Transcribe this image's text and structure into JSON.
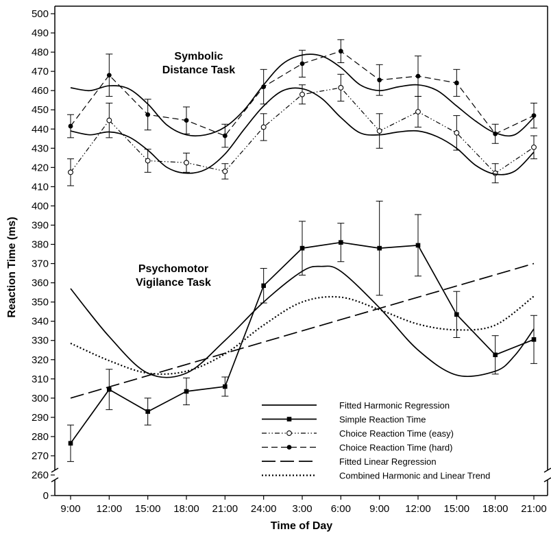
{
  "chart_data": {
    "type": "line",
    "xlabel": "Time of Day",
    "ylabel": "Reaction Time (ms)",
    "categories": [
      "9:00",
      "12:00",
      "15:00",
      "18:00",
      "21:00",
      "24:00",
      "3:00",
      "6:00",
      "9:00",
      "12:00",
      "15:00",
      "18:00",
      "21:00"
    ],
    "y_ticks": [
      0,
      260,
      270,
      280,
      290,
      300,
      310,
      320,
      330,
      340,
      350,
      360,
      370,
      380,
      390,
      400,
      410,
      420,
      430,
      440,
      450,
      460,
      470,
      480,
      490,
      500
    ],
    "ylim": [
      260,
      500
    ],
    "axis_break": {
      "below": 260,
      "zero_label": 0
    },
    "grid": false,
    "legend_position": "bottom-right",
    "annotations": [
      {
        "lines": [
          "Symbolic",
          "Distance Task"
        ]
      },
      {
        "lines": [
          "Psychomotor",
          "Vigilance Task"
        ]
      }
    ],
    "series": [
      {
        "name": "Simple Reaction Time",
        "style": "solid-square",
        "values": [
          276.5,
          304.5,
          293,
          303.5,
          306,
          358.5,
          378,
          381,
          378,
          379.5,
          343.5,
          322.5,
          330.5
        ],
        "errors": [
          9.5,
          10.5,
          7,
          7,
          5,
          9,
          14,
          10,
          24.5,
          16,
          12,
          10,
          12.5
        ]
      },
      {
        "name": "Choice Reaction Time (easy)",
        "style": "dashdotdot-open-circle",
        "values": [
          417.5,
          444.5,
          423.5,
          422.5,
          418,
          441,
          458,
          461.5,
          439,
          449,
          438,
          417,
          430.5
        ],
        "errors": [
          7,
          9,
          6,
          5,
          4,
          7,
          5,
          7,
          9,
          8,
          9,
          5,
          6
        ]
      },
      {
        "name": "Choice Reaction Time (hard)",
        "style": "dashed-filled-circle",
        "values": [
          441.5,
          468,
          447.5,
          444.5,
          436.5,
          462,
          474,
          480.5,
          465.5,
          467.5,
          464,
          437.5,
          447
        ],
        "errors": [
          6,
          11,
          8,
          7,
          6,
          9,
          7,
          6,
          8,
          10.5,
          7,
          5,
          6.5
        ]
      },
      {
        "name": "Fitted Harmonic Regression",
        "style": "solid",
        "smooth": true,
        "x": [
          0,
          1,
          2,
          3,
          4,
          5,
          6,
          6.5,
          7,
          8,
          9,
          10,
          11,
          11.5,
          12
        ],
        "values": [
          357,
          332,
          313,
          313,
          330,
          350,
          366,
          368.5,
          366,
          347,
          325,
          312,
          314,
          322,
          336
        ]
      },
      {
        "name": "",
        "style": "solid",
        "smooth": true,
        "x": [
          0,
          0.5,
          1,
          1.5,
          2,
          2.5,
          3,
          3.5,
          4,
          4.5,
          5,
          5.5,
          6,
          6.5,
          7,
          7.5,
          8,
          8.5,
          9,
          9.5,
          10,
          10.5,
          11,
          11.5,
          12
        ],
        "values": [
          461.5,
          460,
          462.5,
          461,
          453,
          442,
          437,
          437,
          441,
          450,
          463,
          474,
          478.5,
          478,
          472,
          463,
          460,
          462,
          463,
          460,
          452,
          444,
          438,
          437,
          446
        ]
      },
      {
        "name": "",
        "style": "solid",
        "smooth": true,
        "x": [
          0,
          0.5,
          1,
          1.5,
          2,
          2.5,
          3,
          3.5,
          4,
          4.5,
          5,
          5.5,
          6,
          6.5,
          7,
          7.5,
          8,
          8.5,
          9,
          9.5,
          10,
          10.5,
          11,
          11.5,
          12
        ],
        "values": [
          439,
          437,
          438.5,
          436,
          429,
          420,
          417,
          419,
          427,
          440,
          452,
          460,
          461,
          456,
          446,
          438,
          437,
          438.5,
          439,
          436,
          430,
          421,
          416.5,
          418,
          428
        ]
      },
      {
        "name": "Fitted Linear Regression",
        "style": "long-dash",
        "x": [
          0,
          12
        ],
        "values": [
          300,
          370
        ]
      },
      {
        "name": "Combined Harmonic and Linear Trend",
        "style": "dotted",
        "smooth": true,
        "x": [
          0,
          1,
          2,
          3,
          4,
          5,
          6,
          7,
          8,
          9,
          10,
          11,
          12
        ],
        "values": [
          328.5,
          319.5,
          313,
          314,
          323,
          338,
          350,
          352.5,
          346,
          338.5,
          335.5,
          338,
          353
        ]
      }
    ],
    "legend": [
      {
        "label": "Fitted Harmonic Regression",
        "style": "solid"
      },
      {
        "label": "Simple Reaction Time",
        "style": "solid-square"
      },
      {
        "label": "Choice Reaction Time (easy)",
        "style": "dashdotdot-open-circle"
      },
      {
        "label": "Choice Reaction Time (hard)",
        "style": "dashed-filled-circle"
      },
      {
        "label": "Fitted Linear Regression",
        "style": "long-dash"
      },
      {
        "label": "Combined Harmonic and Linear Trend",
        "style": "dotted"
      }
    ],
    "colors": {
      "line": "#000000",
      "background": "#ffffff"
    }
  }
}
